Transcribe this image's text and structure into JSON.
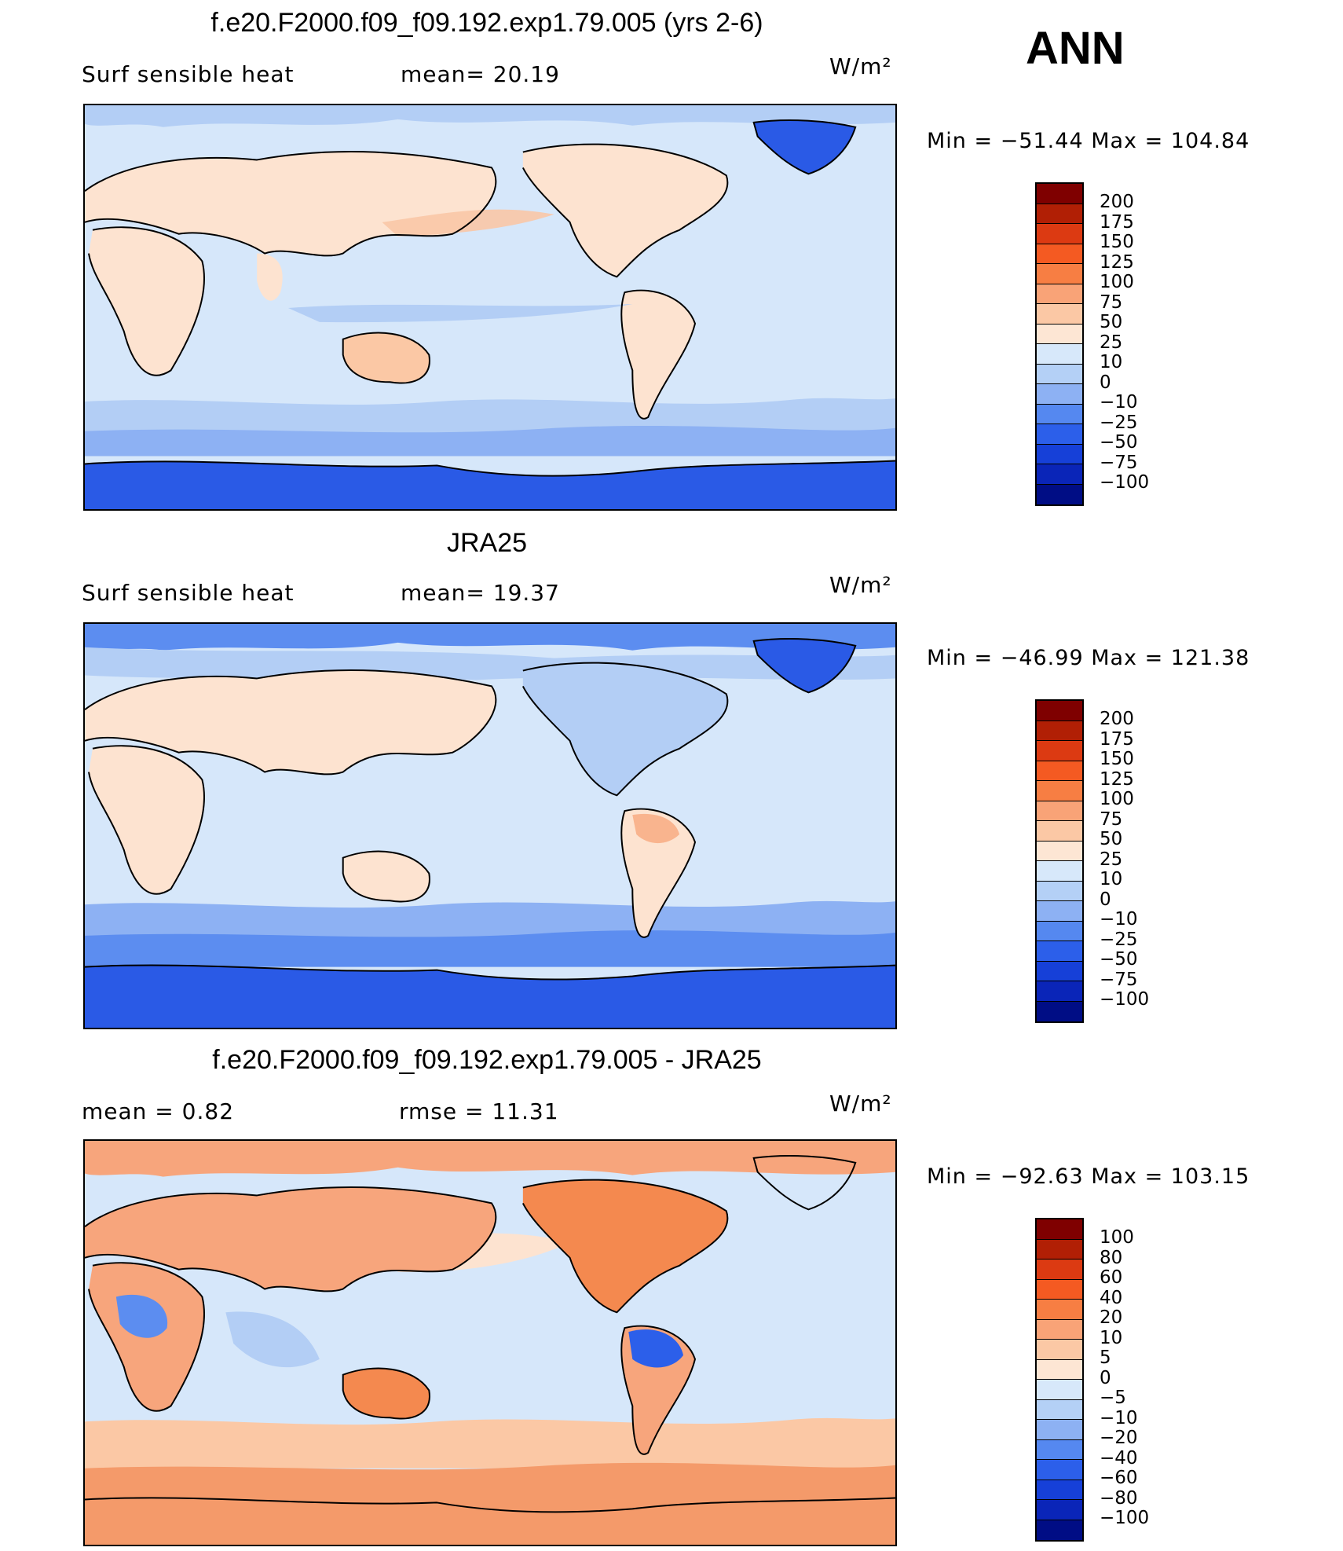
{
  "season": "ANN",
  "panels": [
    {
      "title": "f.e20.F2000.f09_f09.192.exp1.79.005 (yrs 2-6)",
      "left_label": "Surf  sensible  heat",
      "mid_label": "mean=   20.19",
      "units": "W/m²",
      "minmax": "Min  =  −51.44  Max  =  104.84",
      "levels": [
        "200",
        "175",
        "150",
        "125",
        "100",
        "75",
        "50",
        "25",
        "10",
        "0",
        "−10",
        "−25",
        "−50",
        "−75",
        "−100"
      ],
      "palette": [
        "#7f0000",
        "#b11f05",
        "#dc3a12",
        "#f45a22",
        "#f77e43",
        "#f9a377",
        "#fbc8a5",
        "#fde6d4",
        "#d7e8fa",
        "#b4d0f6",
        "#8db1f3",
        "#5588f0",
        "#2c5fea",
        "#1640d8",
        "#0a25b8",
        "#000d85"
      ],
      "map_colors": {
        "ocean": "#d6e7fa",
        "land": "#fde3d0",
        "cool": "#b3cef5",
        "cold": "#5c8df0",
        "ice": "#2a5ae6",
        "warm": "#f9c7a6"
      }
    },
    {
      "title": "JRA25",
      "left_label": "Surf  sensible  heat",
      "mid_label": "mean=   19.37",
      "units": "W/m²",
      "minmax": "Min  =  −46.99  Max  =  121.38",
      "levels": [
        "200",
        "175",
        "150",
        "125",
        "100",
        "75",
        "50",
        "25",
        "10",
        "0",
        "−10",
        "−25",
        "−50",
        "−75",
        "−100"
      ],
      "palette": [
        "#7f0000",
        "#b11f05",
        "#dc3a12",
        "#f45a22",
        "#f77e43",
        "#f9a377",
        "#fbc8a5",
        "#fde6d4",
        "#d7e8fa",
        "#b4d0f6",
        "#8db1f3",
        "#5588f0",
        "#2c5fea",
        "#1640d8",
        "#0a25b8",
        "#000d85"
      ],
      "map_colors": {
        "ocean": "#d6e7fa",
        "land": "#fde3d0",
        "cool": "#b3cef5",
        "cold": "#5c8df0",
        "ice": "#2a5ae6",
        "warm": "#f9b48e"
      }
    },
    {
      "title": "f.e20.F2000.f09_f09.192.exp1.79.005 - JRA25",
      "left_label": "mean  =     0.82",
      "mid_label": "rmse  =     11.31",
      "units": "W/m²",
      "minmax": "Min  =  −92.63  Max  =  103.15",
      "levels": [
        "100",
        "80",
        "60",
        "40",
        "20",
        "10",
        "5",
        "0",
        "−5",
        "−10",
        "−20",
        "−40",
        "−60",
        "−80",
        "−100"
      ],
      "palette": [
        "#7f0000",
        "#b11f05",
        "#dc3a12",
        "#f45a22",
        "#f77e43",
        "#f9a377",
        "#fbc8a5",
        "#fde6d4",
        "#d7e8fa",
        "#b4d0f6",
        "#8db1f3",
        "#5588f0",
        "#2c5fea",
        "#1640d8",
        "#0a25b8",
        "#000d85"
      ],
      "map_colors": {
        "ocean": "#d6e7fa",
        "land": "#f7a57c",
        "cool": "#b3cef5",
        "cold": "#2c5fea",
        "ice": "#f49a6a",
        "warm": "#fbc8a5"
      }
    }
  ]
}
